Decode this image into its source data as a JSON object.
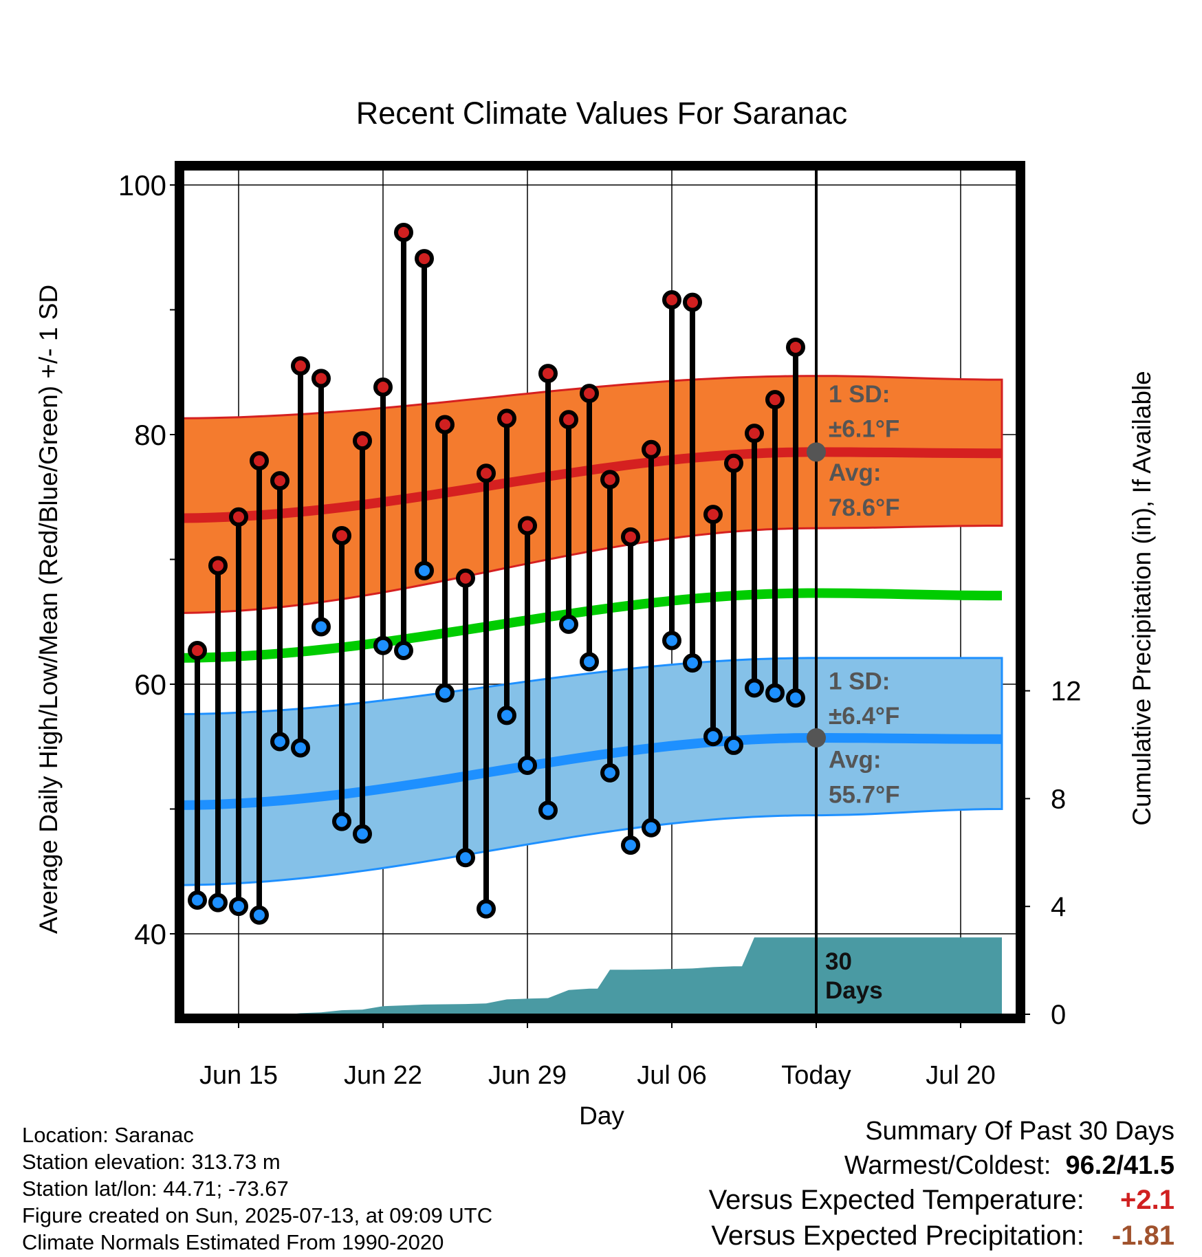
{
  "chart_data": {
    "type": "line",
    "title": "Recent Climate Values For Saranac",
    "xlabel": "Day",
    "ylabel_left": "Average Daily High/Low/Mean (Red/Blue/Green) +/- 1 SD",
    "ylabel_right": "Cumulative Precipitation (in), If Available",
    "x_ticks": [
      {
        "day": 15,
        "label": "Jun 15"
      },
      {
        "day": 22,
        "label": "Jun 22"
      },
      {
        "day": 29,
        "label": "Jun 29"
      },
      {
        "day": 36,
        "label": "Jul 06"
      },
      {
        "day": 43,
        "label": "Today"
      },
      {
        "day": 50,
        "label": "Jul 20"
      }
    ],
    "xlim": [
      11.7,
      52.0
    ],
    "ylim": [
      34,
      100
    ],
    "y_ticks": [
      40,
      60,
      80,
      100
    ],
    "y2lim": [
      0,
      24.0
    ],
    "y2_ticks": [
      0,
      4,
      8,
      12
    ],
    "grid": true,
    "today_day": 43,
    "today_label": "30 Days",
    "days": [
      13,
      14,
      15,
      16,
      17,
      18,
      19,
      20,
      21,
      22,
      23,
      24,
      25,
      26,
      27,
      28,
      29,
      30,
      31,
      32,
      33,
      34,
      35,
      36,
      37,
      38,
      39,
      40,
      41,
      42
    ],
    "daily_high": [
      62.7,
      69.5,
      73.4,
      77.9,
      76.3,
      85.5,
      84.5,
      71.9,
      79.5,
      83.8,
      96.2,
      94.1,
      80.8,
      68.5,
      76.9,
      81.3,
      72.7,
      84.9,
      81.2,
      83.3,
      76.4,
      71.8,
      78.8,
      90.8,
      90.6,
      73.6,
      77.7,
      80.1,
      82.8,
      87.0
    ],
    "daily_low": [
      42.7,
      42.5,
      42.2,
      41.5,
      55.4,
      54.9,
      64.6,
      49.0,
      48.0,
      63.1,
      62.7,
      69.1,
      59.3,
      46.1,
      42.0,
      57.5,
      53.5,
      49.9,
      64.8,
      61.8,
      52.9,
      47.1,
      48.5,
      63.5,
      61.7,
      55.8,
      55.1,
      59.7,
      59.3,
      58.9
    ],
    "series": [
      {
        "name": "Avg High",
        "x": [
          11.7,
          43,
          52
        ],
        "values": [
          73.3,
          78.6,
          78.5
        ]
      },
      {
        "name": "Avg Mean",
        "x": [
          11.7,
          43,
          52
        ],
        "values": [
          62.1,
          67.3,
          67.1
        ]
      },
      {
        "name": "Avg Low",
        "x": [
          11.7,
          43,
          52
        ],
        "values": [
          50.3,
          55.7,
          55.6
        ]
      }
    ],
    "high_sd_band": {
      "x": [
        11.7,
        43,
        52
      ],
      "upper": [
        81.3,
        84.7,
        84.4
      ],
      "lower": [
        65.7,
        72.5,
        72.7
      ]
    },
    "low_sd_band": {
      "x": [
        11.7,
        43,
        52
      ],
      "upper": [
        57.6,
        62.1,
        62.1
      ],
      "lower": [
        43.9,
        49.5,
        50.0
      ]
    },
    "precip_cumulative": {
      "x": [
        11.7,
        17.5,
        18,
        19,
        20,
        21,
        22,
        23,
        24,
        25,
        26,
        27,
        28,
        29,
        30,
        31,
        32,
        33,
        34,
        35,
        36,
        37,
        38,
        39,
        40,
        41,
        42,
        43,
        52
      ],
      "values": [
        0,
        0,
        0.04,
        0.07,
        0.15,
        0.17,
        0.3,
        0.33,
        0.36,
        0.37,
        0.38,
        0.4,
        0.55,
        0.58,
        0.6,
        0.9,
        0.95,
        1.65,
        1.65,
        1.66,
        1.68,
        1.7,
        1.75,
        1.78,
        2.85,
        2.85,
        2.85,
        2.85,
        2.85
      ]
    },
    "annotations": {
      "high_sd_label": "1 SD:",
      "high_sd_value": "±6.1°F",
      "high_avg_label": "Avg:",
      "high_avg_value": "78.6°F",
      "low_sd_label": "1 SD:",
      "low_sd_value": "±6.4°F",
      "low_avg_label": "Avg:",
      "low_avg_value": "55.7°F"
    },
    "colors": {
      "high_band": "#f47b2e",
      "high_line": "#d52020",
      "mean_line": "#00cc00",
      "low_band": "#85c1e8",
      "low_line": "#1e90ff",
      "precip": "#4a9aa3",
      "high_dot": "#d02020",
      "low_dot": "#1e90ff",
      "annotation_text": "#555555"
    }
  },
  "footer": {
    "location": "Location: Saranac",
    "elevation": "Station elevation: 313.73 m",
    "latlon": "Station lat/lon: 44.71; -73.67",
    "created": "Figure created on Sun, 2025-07-13, at 09:09 UTC",
    "normals": "Climate Normals Estimated From 1990-2020"
  },
  "summary": {
    "title": "Summary Of Past 30 Days",
    "warm_cold_label": "Warmest/Coldest:",
    "warm_cold_value": "96.2/41.5",
    "temp_label": "Versus Expected Temperature:",
    "temp_value": "+2.1",
    "temp_color": "#d02020",
    "precip_label": "Versus Expected Precipitation:",
    "precip_value": "-1.81",
    "precip_color": "#a0522d"
  }
}
